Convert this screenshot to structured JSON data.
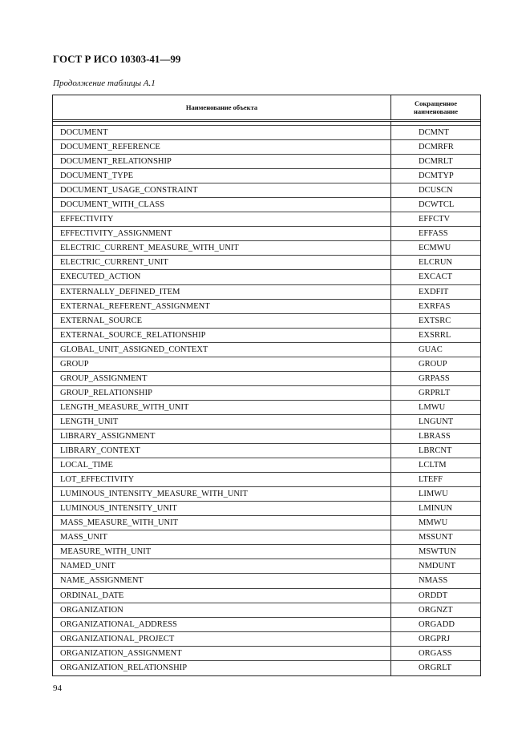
{
  "header": {
    "title": "ГОСТ Р ИСО 10303-41—99",
    "caption": "Продолжение таблицы А.1"
  },
  "table": {
    "columns": [
      "Наименование объекта",
      "Сокращенное наименование"
    ],
    "rows": [
      [
        "DOCUMENT",
        "DCMNT"
      ],
      [
        "DOCUMENT_REFERENCE",
        "DCMRFR"
      ],
      [
        "DOCUMENT_RELATIONSHIP",
        "DCMRLT"
      ],
      [
        "DOCUMENT_TYPE",
        "DCMTYP"
      ],
      [
        "DOCUMENT_USAGE_CONSTRAINT",
        "DCUSCN"
      ],
      [
        "DOCUMENT_WITH_CLASS",
        "DCWTCL"
      ],
      [
        "EFFECTIVITY",
        "EFFCTV"
      ],
      [
        "EFFECTIVITY_ASSIGNMENT",
        "EFFASS"
      ],
      [
        "ELECTRIC_CURRENT_MEASURE_WITH_UNIT",
        "ECMWU"
      ],
      [
        "ELECTRIC_CURRENT_UNIT",
        "ELCRUN"
      ],
      [
        "EXECUTED_ACTION",
        "EXCACT"
      ],
      [
        "EXTERNALLY_DEFINED_ITEM",
        "EXDFIT"
      ],
      [
        "EXTERNAL_REFERENT_ASSIGNMENT",
        "EXRFAS"
      ],
      [
        "EXTERNAL_SOURCE",
        "EXTSRC"
      ],
      [
        "EXTERNAL_SOURCE_RELATIONSHIP",
        "EXSRRL"
      ],
      [
        "GLOBAL_UNIT_ASSIGNED_CONTEXT",
        "GUAC"
      ],
      [
        "GROUP",
        "GROUP"
      ],
      [
        "GROUP_ASSIGNMENT",
        "GRPASS"
      ],
      [
        "GROUP_RELATIONSHIP",
        "GRPRLT"
      ],
      [
        "LENGTH_MEASURE_WITH_UNIT",
        "LMWU"
      ],
      [
        "LENGTH_UNIT",
        "LNGUNT"
      ],
      [
        "LIBRARY_ASSIGNMENT",
        "LBRASS"
      ],
      [
        "LIBRARY_CONTEXT",
        "LBRCNT"
      ],
      [
        "LOCAL_TIME",
        "LCLTM"
      ],
      [
        "LOT_EFFECTIVITY",
        "LTEFF"
      ],
      [
        "LUMINOUS_INTENSITY_MEASURE_WITH_UNIT",
        "LIMWU"
      ],
      [
        "LUMINOUS_INTENSITY_UNIT",
        "LMINUN"
      ],
      [
        "MASS_MEASURE_WITH_UNIT",
        "MMWU"
      ],
      [
        "MASS_UNIT",
        "MSSUNT"
      ],
      [
        "MEASURE_WITH_UNIT",
        "MSWTUN"
      ],
      [
        "NAMED_UNIT",
        "NMDUNT"
      ],
      [
        "NAME_ASSIGNMENT",
        "NMASS"
      ],
      [
        "ORDINAL_DATE",
        "ORDDT"
      ],
      [
        "ORGANIZATION",
        "ORGNZT"
      ],
      [
        "ORGANIZATIONAL_ADDRESS",
        "ORGADD"
      ],
      [
        "ORGANIZATIONAL_PROJECT",
        "ORGPRJ"
      ],
      [
        "ORGANIZATION_ASSIGNMENT",
        "ORGASS"
      ],
      [
        "ORGANIZATION_RELATIONSHIP",
        "ORGRLT"
      ]
    ]
  },
  "footer": {
    "page_number": "94"
  }
}
